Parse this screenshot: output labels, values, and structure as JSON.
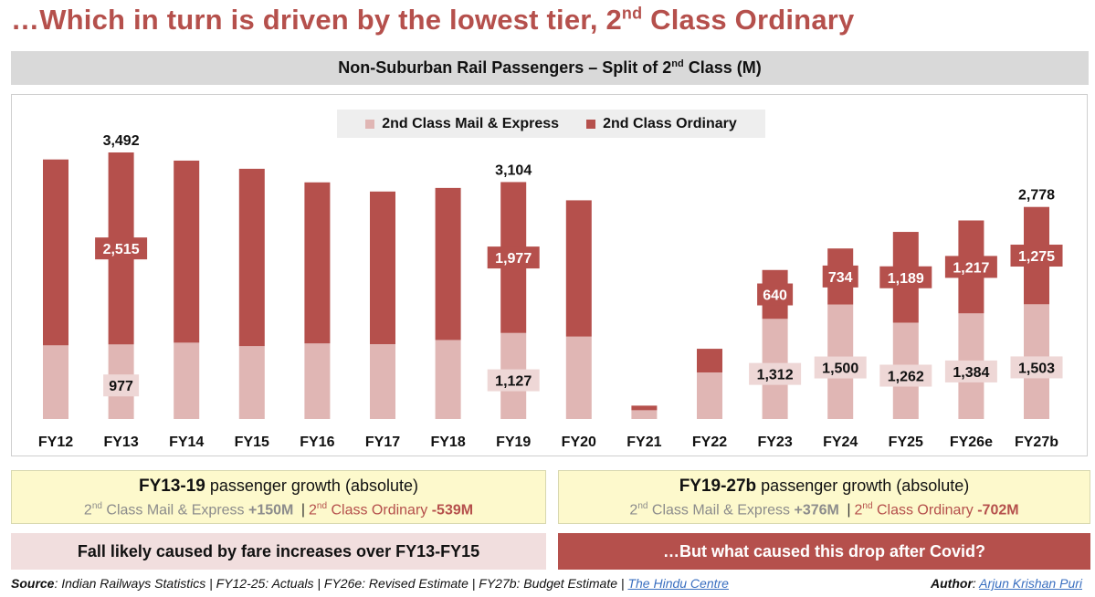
{
  "headline": {
    "text": "…Which in turn is driven by the lowest tier, 2",
    "sup": "nd",
    "tail": " Class Ordinary"
  },
  "subtitle": {
    "text": "Non-Suburban Rail Passengers – Split of 2",
    "sup": "nd",
    "tail": " Class (M)"
  },
  "colors": {
    "accent": "#b5504c",
    "light": "#e0b6b4",
    "yellow": "#fdf9cc",
    "pink_panel": "#f1dede"
  },
  "chart_data": {
    "type": "bar",
    "stacked": true,
    "title": "Non-Suburban Rail Passengers – Split of 2nd Class (M)",
    "categories": [
      "FY12",
      "FY13",
      "FY14",
      "FY15",
      "FY16",
      "FY17",
      "FY18",
      "FY19",
      "FY20",
      "FY21",
      "FY22",
      "FY23",
      "FY24",
      "FY25",
      "FY26e",
      "FY27b"
    ],
    "series": [
      {
        "name": "2nd Class Mail & Express",
        "color": "#e0b6b4",
        "values": [
          965,
          977,
          1000,
          955,
          990,
          980,
          1035,
          1127,
          1080,
          115,
          610,
          1312,
          1500,
          1262,
          1384,
          1503
        ]
      },
      {
        "name": "2nd Class Ordinary",
        "color": "#b5504c",
        "values": [
          2435,
          2515,
          2385,
          2323,
          2110,
          2000,
          1992,
          1977,
          1785,
          60,
          310,
          640,
          734,
          1189,
          1217,
          1275
        ]
      }
    ],
    "segment_labels": {
      "FY13": {
        "bottom": "977",
        "top": "2,515"
      },
      "FY19": {
        "bottom": "1,127",
        "top": "1,977"
      },
      "FY23": {
        "bottom": "1,312",
        "top": "640"
      },
      "FY24": {
        "bottom": "1,500",
        "top": "734"
      },
      "FY25": {
        "bottom": "1,262",
        "top": "1,189"
      },
      "FY26e": {
        "bottom": "1,384",
        "top": "1,217"
      },
      "FY27b": {
        "bottom": "1,503",
        "top": "1,275"
      }
    },
    "total_labels": {
      "FY13": "3,492",
      "FY19": "3,104",
      "FY27b": "2,778"
    },
    "ylim": [
      0,
      3600
    ],
    "legend": {
      "placement": "top-center",
      "items": [
        "2nd Class Mail & Express",
        "2nd Class Ordinary"
      ]
    }
  },
  "panels": {
    "left": {
      "title_bold": "FY13-19",
      "title_rest": " passenger growth (absolute)",
      "me_pre": "2",
      "me_sup": "nd",
      "me_label": " Class Mail & Express ",
      "me_value": "+150M",
      "sep": "|",
      "ord_pre": "2",
      "ord_sup": "nd",
      "ord_label": " Class Ordinary ",
      "ord_value": "-539M"
    },
    "right": {
      "title_bold": "FY19-27b",
      "title_rest": " passenger growth (absolute)",
      "me_pre": "2",
      "me_sup": "nd",
      "me_label": " Class Mail & Express ",
      "me_value": "+376M",
      "sep": "|",
      "ord_pre": "2",
      "ord_sup": "nd",
      "ord_label": " Class Ordinary ",
      "ord_value": "-702M"
    }
  },
  "notes": {
    "left": "Fall likely caused by fare increases over FY13-FY15",
    "right": "…But what caused this drop after Covid?"
  },
  "footer": {
    "source_label": "Source",
    "source_text": ": Indian Railways Statistics | FY12-25: Actuals | FY26e: Revised Estimate | FY27b: Budget Estimate | ",
    "source_link": "The Hindu Centre",
    "author_label": "Author",
    "author_sep": ": ",
    "author_name": "Arjun Krishan Puri"
  }
}
